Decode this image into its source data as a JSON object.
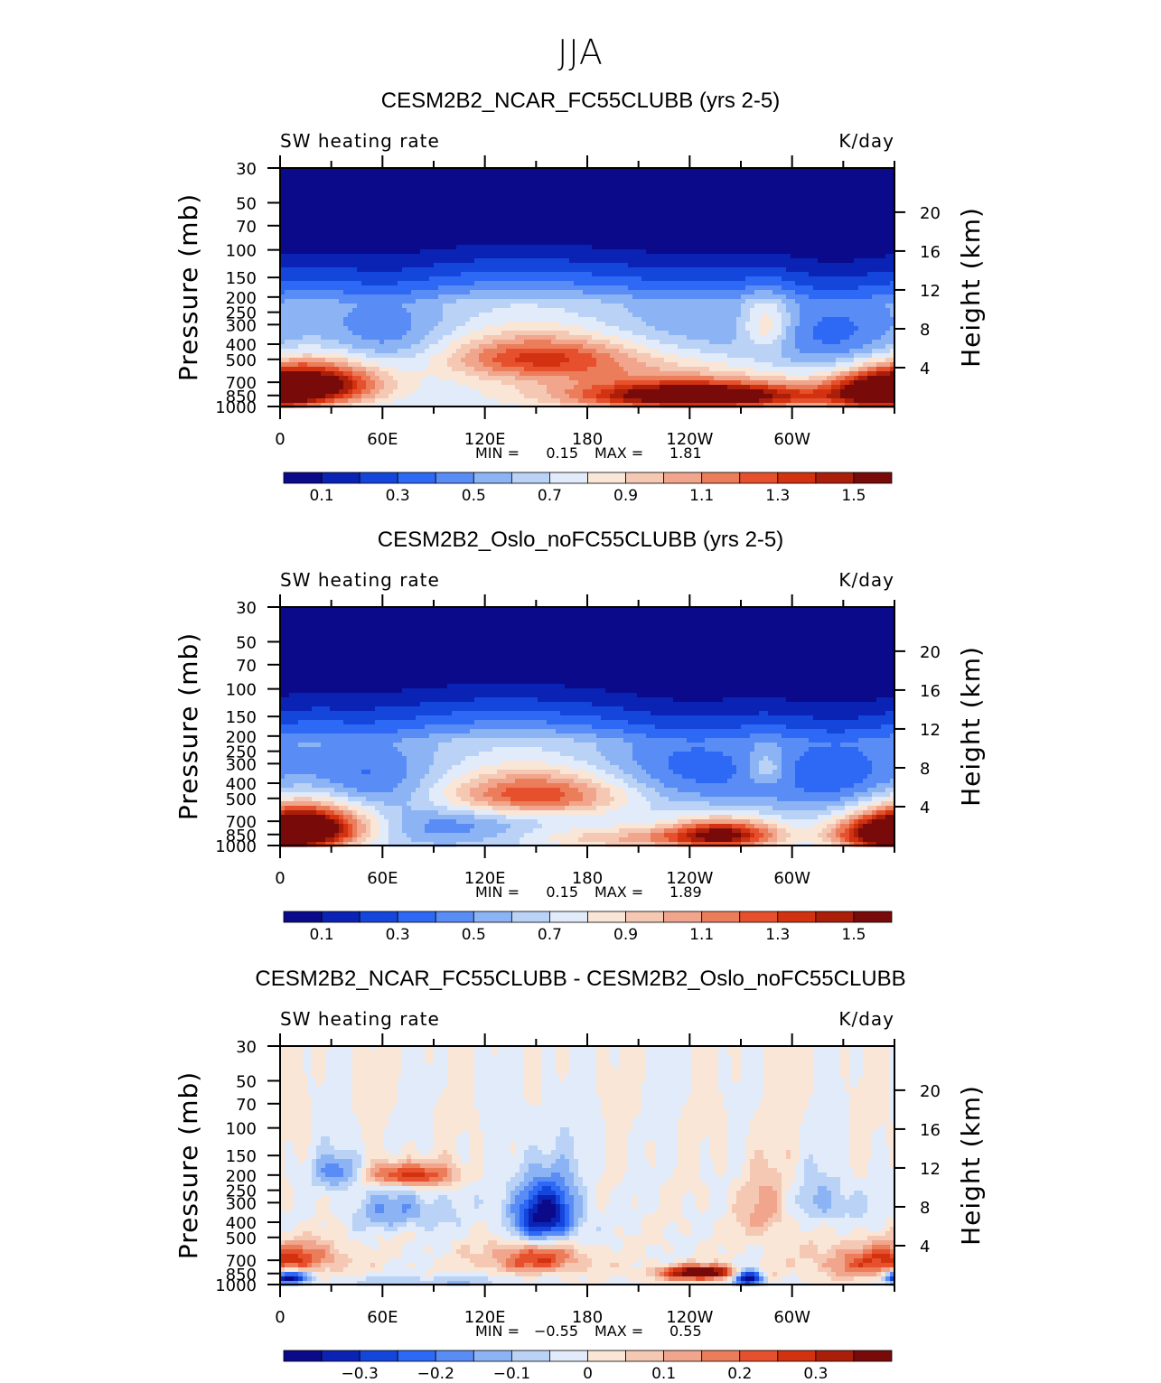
{
  "title": "JJA",
  "colors": {
    "levels": [
      "#0a0a8a",
      "#0a23b4",
      "#1446dc",
      "#2d69f5",
      "#5a8cf5",
      "#8cb4f5",
      "#b9d2f5",
      "#e1ebfa",
      "#fae6d7",
      "#f5c8b4",
      "#f0a58c",
      "#eb7d5a",
      "#e6502d",
      "#d2320f",
      "#aa1e0a",
      "#780a0a"
    ]
  },
  "chart_data": [
    {
      "type": "heatmap",
      "panel_title": "CESM2B2_NCAR_FC55CLUBB (yrs 2-5)",
      "left_label": "SW heating rate",
      "right_label": "K/day",
      "ylabel": "Pressure (mb)",
      "ylabel_right": "Height (km)",
      "x_ticks": [
        "0",
        "60E",
        "120E",
        "180",
        "120W",
        "60W"
      ],
      "y_ticks": [
        "30",
        "50",
        "70",
        "100",
        "150",
        "200",
        "250",
        "300",
        "400",
        "500",
        "700",
        "850",
        "1000"
      ],
      "y_right_ticks": [
        "20",
        "16",
        "12",
        "8",
        "4"
      ],
      "stats": {
        "min_label": "MIN =",
        "min": "0.15",
        "max_label": "MAX =",
        "max": "1.81"
      },
      "colorbar_labels": [
        "0.1",
        "0.3",
        "0.5",
        "0.7",
        "0.9",
        "1.1",
        "1.3",
        "1.5"
      ],
      "field": {
        "base": 0.6,
        "features": [
          {
            "lon": 20,
            "p": 720,
            "amp": 0.95,
            "dlon": 28,
            "dp": 170
          },
          {
            "lon": 250,
            "p": 860,
            "amp": 1.0,
            "dlon": 45,
            "dp": 110
          },
          {
            "lon": 150,
            "p": 480,
            "amp": 0.55,
            "dlon": 40,
            "dp": 110
          },
          {
            "lon": 350,
            "p": 820,
            "amp": 0.75,
            "dlon": 22,
            "dp": 170
          },
          {
            "lon": 285,
            "p": 300,
            "amp": 0.35,
            "dlon": 10,
            "dp": 80
          },
          {
            "lon": 210,
            "p": 720,
            "amp": 0.35,
            "dlon": 70,
            "dp": 250
          },
          {
            "lon": 60,
            "p": 350,
            "amp": -0.25,
            "dlon": 28,
            "dp": 150
          },
          {
            "lon": 330,
            "p": 380,
            "amp": -0.3,
            "dlon": 30,
            "dp": 180
          },
          {
            "lon": 240,
            "p": 320,
            "amp": -0.2,
            "dlon": 45,
            "dp": 150
          }
        ]
      }
    },
    {
      "type": "heatmap",
      "panel_title": "CESM2B2_Oslo_noFC55CLUBB (yrs 2-5)",
      "left_label": "SW heating rate",
      "right_label": "K/day",
      "ylabel": "Pressure (mb)",
      "ylabel_right": "Height (km)",
      "x_ticks": [
        "0",
        "60E",
        "120E",
        "180",
        "120W",
        "60W"
      ],
      "y_ticks": [
        "30",
        "50",
        "70",
        "100",
        "150",
        "200",
        "250",
        "300",
        "400",
        "500",
        "700",
        "850",
        "1000"
      ],
      "y_right_ticks": [
        "20",
        "16",
        "12",
        "8",
        "4"
      ],
      "stats": {
        "min_label": "MIN =",
        "min": "0.15",
        "max_label": "MAX =",
        "max": "1.89"
      },
      "colorbar_labels": [
        "0.1",
        "0.3",
        "0.5",
        "0.7",
        "0.9",
        "1.1",
        "1.3",
        "1.5"
      ],
      "field": {
        "base": 0.6,
        "features": [
          {
            "lon": 15,
            "p": 760,
            "amp": 1.0,
            "dlon": 25,
            "dp": 190
          },
          {
            "lon": 260,
            "p": 850,
            "amp": 0.8,
            "dlon": 22,
            "dp": 130
          },
          {
            "lon": 150,
            "p": 470,
            "amp": 0.65,
            "dlon": 40,
            "dp": 110
          },
          {
            "lon": 355,
            "p": 860,
            "amp": 0.75,
            "dlon": 22,
            "dp": 150
          },
          {
            "lon": 210,
            "p": 900,
            "amp": 0.35,
            "dlon": 45,
            "dp": 110
          },
          {
            "lon": 285,
            "p": 320,
            "amp": 0.25,
            "dlon": 8,
            "dp": 60
          },
          {
            "lon": 50,
            "p": 380,
            "amp": -0.3,
            "dlon": 30,
            "dp": 150
          },
          {
            "lon": 330,
            "p": 360,
            "amp": -0.3,
            "dlon": 30,
            "dp": 180
          },
          {
            "lon": 240,
            "p": 330,
            "amp": -0.3,
            "dlon": 40,
            "dp": 150
          },
          {
            "lon": 100,
            "p": 760,
            "amp": -0.2,
            "dlon": 30,
            "dp": 150
          }
        ]
      }
    },
    {
      "type": "heatmap",
      "panel_title": "CESM2B2_NCAR_FC55CLUBB - CESM2B2_Oslo_noFC55CLUBB",
      "left_label": "SW heating rate",
      "right_label": "K/day",
      "ylabel": "Pressure (mb)",
      "ylabel_right": "Height (km)",
      "x_ticks": [
        "0",
        "60E",
        "120E",
        "180",
        "120W",
        "60W"
      ],
      "y_ticks": [
        "30",
        "50",
        "70",
        "100",
        "150",
        "200",
        "250",
        "300",
        "400",
        "500",
        "700",
        "850",
        "1000"
      ],
      "y_right_ticks": [
        "20",
        "16",
        "12",
        "8",
        "4"
      ],
      "stats": {
        "min_label": "MIN =",
        "min": "−0.55",
        "max_label": "MAX =",
        "max": "0.55"
      },
      "colorbar_labels": [
        "−0.3",
        "−0.2",
        "−0.1",
        "0",
        "0.1",
        "0.2",
        "0.3"
      ],
      "field": {
        "base": 0.0,
        "features": [
          {
            "lon": 248,
            "p": 840,
            "amp": 0.45,
            "dlon": 18,
            "dp": 60
          },
          {
            "lon": 150,
            "p": 680,
            "amp": 0.25,
            "dlon": 20,
            "dp": 110
          },
          {
            "lon": 75,
            "p": 200,
            "amp": 0.3,
            "dlon": 18,
            "dp": 25
          },
          {
            "lon": 15,
            "p": 670,
            "amp": 0.15,
            "dlon": 18,
            "dp": 100
          },
          {
            "lon": 345,
            "p": 720,
            "amp": 0.2,
            "dlon": 22,
            "dp": 130
          },
          {
            "lon": 285,
            "p": 330,
            "amp": 0.12,
            "dlon": 12,
            "dp": 120
          },
          {
            "lon": 155,
            "p": 360,
            "amp": -0.38,
            "dlon": 14,
            "dp": 120
          },
          {
            "lon": 5,
            "p": 900,
            "amp": -0.45,
            "dlon": 7,
            "dp": 60
          },
          {
            "lon": 274,
            "p": 900,
            "amp": -0.5,
            "dlon": 6,
            "dp": 80
          },
          {
            "lon": 35,
            "p": 190,
            "amp": -0.2,
            "dlon": 10,
            "dp": 35
          },
          {
            "lon": 70,
            "p": 340,
            "amp": -0.15,
            "dlon": 20,
            "dp": 70
          },
          {
            "lon": 320,
            "p": 300,
            "amp": -0.12,
            "dlon": 15,
            "dp": 80
          },
          {
            "lon": 90,
            "p": 960,
            "amp": -0.1,
            "dlon": 40,
            "dp": 60
          }
        ]
      }
    }
  ]
}
